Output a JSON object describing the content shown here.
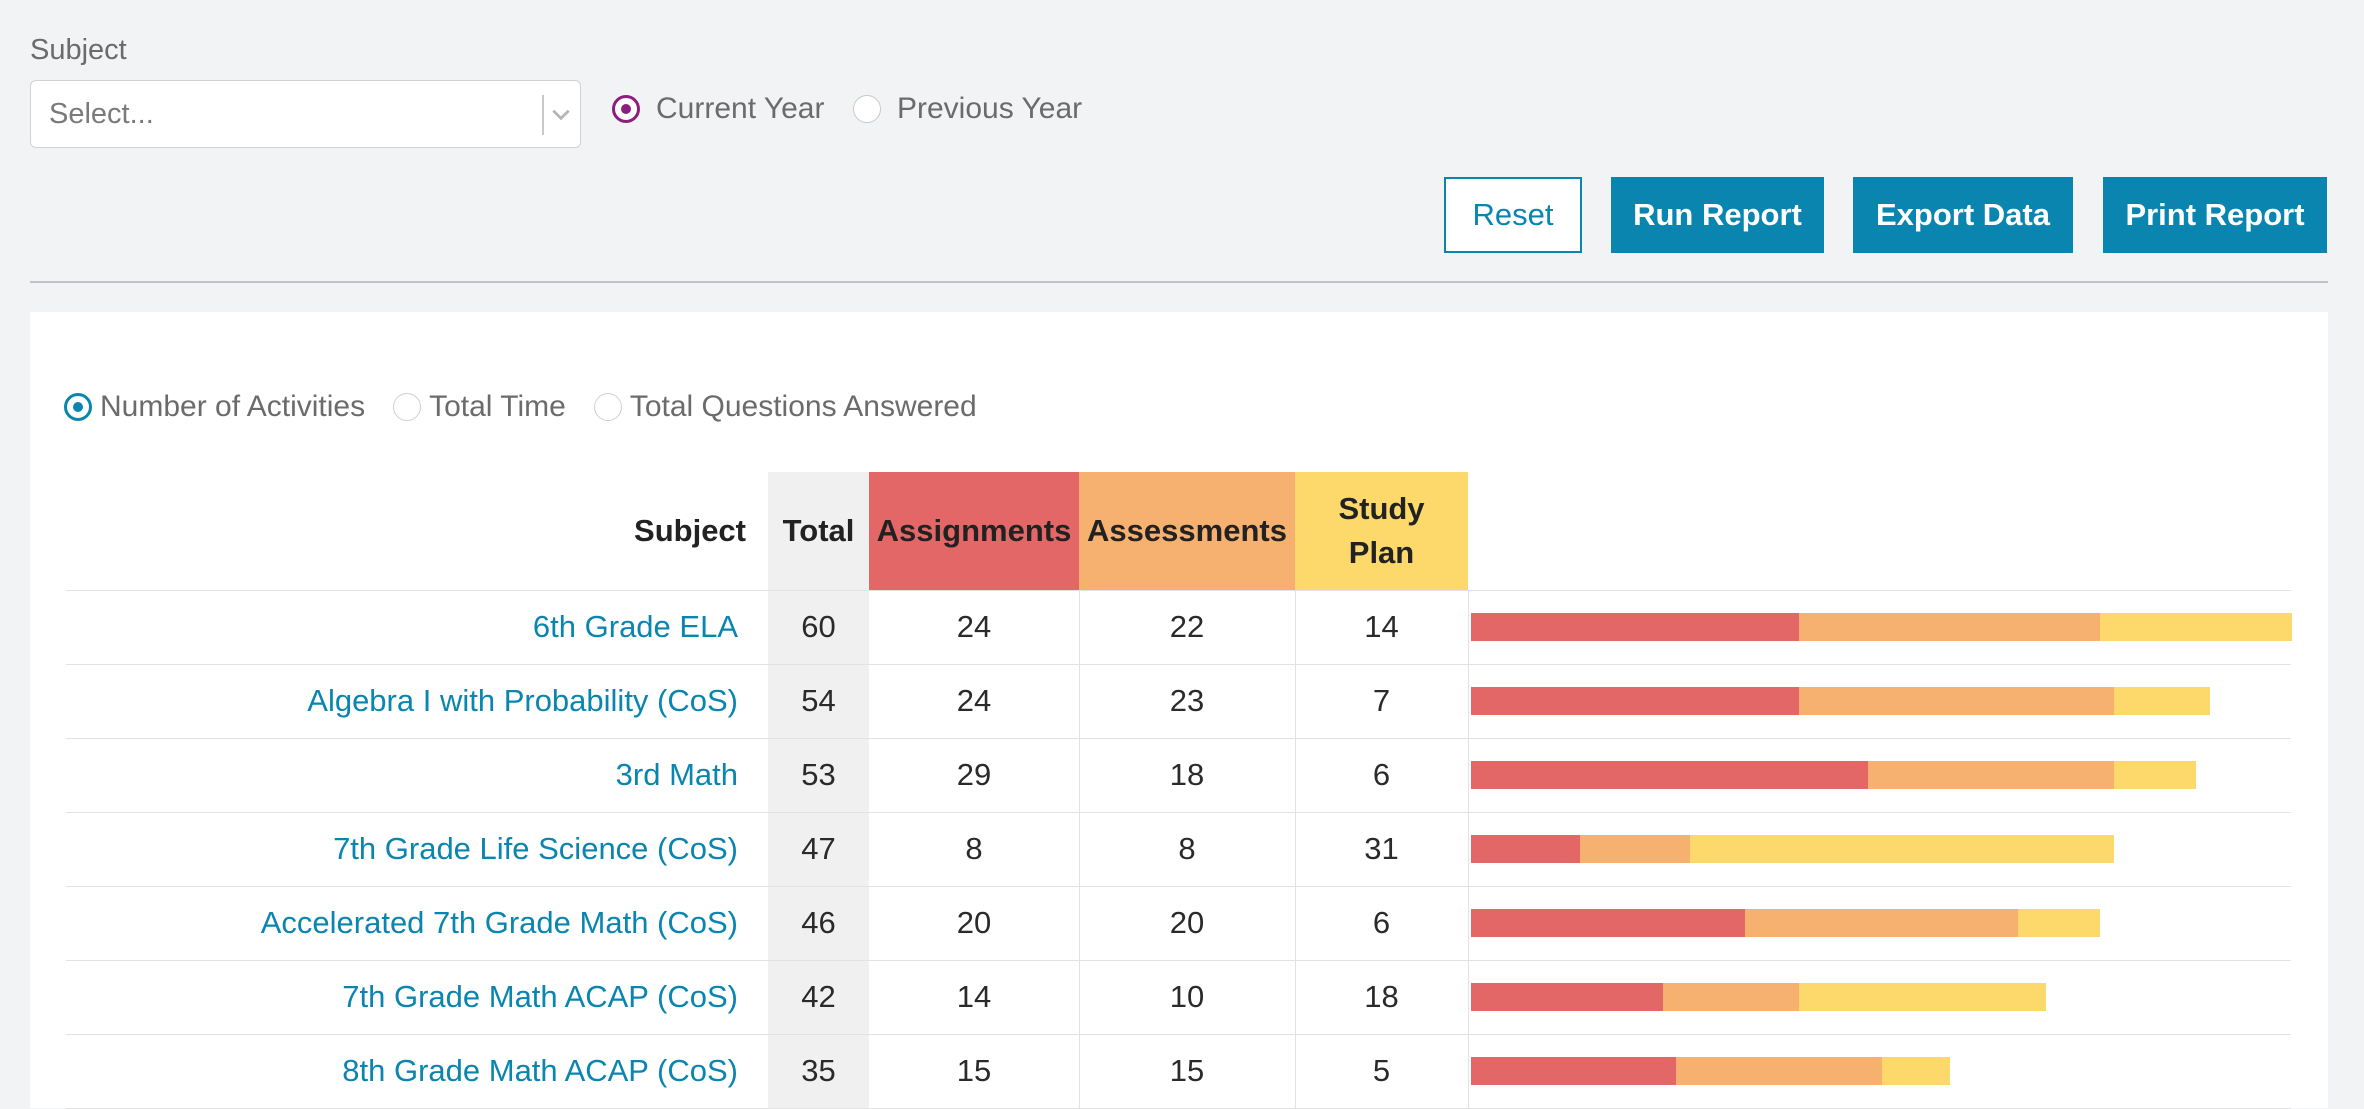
{
  "filters": {
    "subject_label": "Subject",
    "subject_placeholder": "Select...",
    "year_options": [
      "Current Year",
      "Previous Year"
    ],
    "year_selected": "Current Year"
  },
  "buttons": {
    "reset": "Reset",
    "run": "Run Report",
    "export": "Export Data",
    "print": "Print Report"
  },
  "metric": {
    "options": [
      "Number of Activities",
      "Total Time",
      "Total Questions Answered"
    ],
    "selected": "Number of Activities"
  },
  "table": {
    "headers": {
      "subject": "Subject",
      "total": "Total",
      "assignments": "Assignments",
      "assessments": "Assessments",
      "study_plan": "Study Plan"
    },
    "rows": [
      {
        "subject": "6th Grade ELA",
        "total": 60,
        "assignments": 24,
        "assessments": 22,
        "study_plan": 14
      },
      {
        "subject": "Algebra I with Probability (CoS)",
        "total": 54,
        "assignments": 24,
        "assessments": 23,
        "study_plan": 7
      },
      {
        "subject": "3rd Math",
        "total": 53,
        "assignments": 29,
        "assessments": 18,
        "study_plan": 6
      },
      {
        "subject": "7th Grade Life Science (CoS)",
        "total": 47,
        "assignments": 8,
        "assessments": 8,
        "study_plan": 31
      },
      {
        "subject": "Accelerated 7th Grade Math (CoS)",
        "total": 46,
        "assignments": 20,
        "assessments": 20,
        "study_plan": 6
      },
      {
        "subject": "7th Grade Math ACAP (CoS)",
        "total": 42,
        "assignments": 14,
        "assessments": 10,
        "study_plan": 18
      },
      {
        "subject": "8th Grade Math ACAP (CoS)",
        "total": 35,
        "assignments": 15,
        "assessments": 15,
        "study_plan": 5
      }
    ]
  },
  "colors": {
    "accent": "#0a85b0",
    "radio_purple": "#8b1e7e",
    "assignments": "#e36767",
    "assessments": "#f6b06f",
    "study_plan": "#fdd96b"
  }
}
